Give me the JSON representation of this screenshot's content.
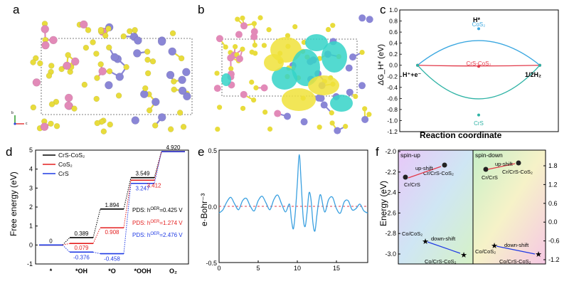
{
  "panels": {
    "a": {
      "label": "a",
      "axes": {
        "b": "b",
        "c": "c"
      }
    },
    "b": {
      "label": "b"
    },
    "c": {
      "label": "c"
    },
    "d": {
      "label": "d"
    },
    "e": {
      "label": "e"
    },
    "f": {
      "label": "f"
    }
  },
  "colors": {
    "sulfur": "#e8dc3c",
    "chromium": "#e28ab8",
    "cobalt": "#8a86d6",
    "charge_cyan": "#35d4c8",
    "charge_yellow": "#f0e23a",
    "cos2_line": "#3aa7e0",
    "crs_line": "#2fb3a5",
    "crs_cos2_line": "#e23a4a",
    "d_black": "#000000",
    "d_red": "#e41f1f",
    "d_blue": "#1f3ae4",
    "e_curve": "#3aa0e0"
  },
  "chart_data": [
    {
      "panel": "c",
      "type": "line",
      "title": "",
      "xlabel": "Reaction coordinate",
      "ylabel": "ΔG_H* (eV)",
      "ylim": [
        -1.2,
        1.0
      ],
      "yticks": [
        "1.0",
        "0.8",
        "0.6",
        "0.4",
        "0.2",
        "0.0",
        "-0.2",
        "-0.4",
        "-0.6",
        "-0.8",
        "-1.0",
        "-1.2"
      ],
      "states": [
        "H⁺+e⁻",
        "H*",
        "1/2H₂"
      ],
      "series": [
        {
          "name": "CoS₂",
          "values": [
            0,
            0.66,
            0
          ]
        },
        {
          "name": "CrS-CoS₂",
          "values": [
            0,
            -0.02,
            0
          ]
        },
        {
          "name": "CrS",
          "values": [
            0,
            -0.9,
            0
          ]
        }
      ]
    },
    {
      "panel": "d",
      "type": "line",
      "xlabel": "",
      "ylabel": "Free energy (eV)",
      "ylim": [
        -1,
        5
      ],
      "yticks": [
        "5",
        "4",
        "3",
        "2",
        "1",
        "0",
        "-1"
      ],
      "categories": [
        "*",
        "*OH",
        "*O",
        "*OOH",
        "O₂"
      ],
      "series": [
        {
          "name": "CrS-CoS₂",
          "values": [
            0,
            0.389,
            1.894,
            3.549,
            4.92
          ]
        },
        {
          "name": "CoS₂",
          "values": [
            0,
            0.079,
            0.908,
            3.412,
            4.92
          ]
        },
        {
          "name": "CrS",
          "values": [
            0,
            -0.376,
            -0.458,
            3.247,
            4.92
          ]
        }
      ],
      "level_labels": [
        {
          "text": "0",
          "series": "CrS-CoS₂",
          "step": 0
        },
        {
          "text": "0.389",
          "series": "CrS-CoS₂",
          "step": 1
        },
        {
          "text": "0.079",
          "series": "CoS₂",
          "step": 1
        },
        {
          "text": "-0.376",
          "series": "CrS",
          "step": 1
        },
        {
          "text": "1.894",
          "series": "CrS-CoS₂",
          "step": 2
        },
        {
          "text": "0.908",
          "series": "CoS₂",
          "step": 2
        },
        {
          "text": "-0.458",
          "series": "CrS",
          "step": 2
        },
        {
          "text": "3.549",
          "series": "CrS-CoS₂",
          "step": 3
        },
        {
          "text": "3.412",
          "series": "CoS₂",
          "step": 3
        },
        {
          "text": "3.247",
          "series": "CrS",
          "step": 3
        },
        {
          "text": "4.920",
          "series": "CrS-CoS₂",
          "step": 4
        }
      ],
      "pds_labels": [
        {
          "prefix": "PDS: h",
          "sup": "OER",
          "value": "=0.425 V",
          "series": "CrS-CoS₂"
        },
        {
          "prefix": "PDS: h",
          "sup": "OER",
          "value": "=1.274 V",
          "series": "CoS₂"
        },
        {
          "prefix": "PDS: h",
          "sup": "OER",
          "value": "=2.476 V",
          "series": "CrS"
        }
      ]
    },
    {
      "panel": "e",
      "type": "line",
      "ylabel": "e·Bohr⁻³",
      "xlim": [
        0,
        19
      ],
      "ylim": [
        -0.5,
        0.5
      ],
      "xticks": [
        "0",
        "5",
        "10",
        "15"
      ],
      "yticks": [
        "0.5",
        "0.0",
        "-0.5"
      ],
      "x": [
        0,
        0.5,
        1,
        1.5,
        2,
        2.5,
        3,
        3.5,
        4,
        4.5,
        5,
        5.5,
        6,
        6.5,
        7,
        7.5,
        8,
        8.5,
        9,
        9.25,
        9.5,
        9.75,
        10,
        10.25,
        10.5,
        10.75,
        11,
        11.25,
        11.5,
        11.75,
        12,
        12.25,
        12.5,
        12.75,
        13,
        13.5,
        14,
        14.5,
        15,
        15.5,
        16,
        16.5,
        17,
        17.5,
        18,
        18.5,
        19
      ],
      "y": [
        -0.06,
        -0.03,
        0.04,
        0.08,
        0.02,
        -0.03,
        0.05,
        0.07,
        0.0,
        -0.04,
        0.05,
        0.09,
        0.03,
        -0.03,
        0.06,
        0.1,
        0.02,
        -0.05,
        0.02,
        -0.12,
        -0.2,
        -0.05,
        0.2,
        0.46,
        0.2,
        -0.1,
        -0.18,
        -0.05,
        0.12,
        0.06,
        -0.15,
        -0.22,
        -0.08,
        0.05,
        0.1,
        -0.05,
        0.06,
        0.08,
        -0.02,
        -0.06,
        0.04,
        0.05,
        -0.03,
        -0.02,
        0.02,
        -0.04,
        -0.06
      ]
    },
    {
      "panel": "f",
      "type": "scatter",
      "ylabel": "Energy (eV)",
      "yticks_left": [
        "-2.0",
        "-2.2",
        "-2.4",
        "-2.6",
        "-2.8",
        "-3.0"
      ],
      "yticks_right": [
        "1.8",
        "1.2",
        "0.6",
        "0.0",
        "-0.6",
        "-1.2"
      ],
      "title_left": "spin-up",
      "title_right": "spin-down",
      "left_points": [
        {
          "label": "Cr/CrS",
          "marker": "circle"
        },
        {
          "label": "Cr/CrS-CoS₂",
          "marker": "circle"
        },
        {
          "label": "Co/CoS₂",
          "marker": "star"
        },
        {
          "label": "Co/CrS-CoS₂",
          "marker": "star"
        }
      ],
      "right_points": [
        {
          "label": "Cr/CrS",
          "marker": "circle"
        },
        {
          "label": "Cr/CrS-CoS₂",
          "marker": "circle"
        },
        {
          "label": "Co/CoS₂",
          "marker": "star"
        },
        {
          "label": "Co/CrS-CoS₂",
          "marker": "star"
        }
      ],
      "arrows": {
        "up": "up-shift",
        "down": "down-shift"
      }
    }
  ]
}
